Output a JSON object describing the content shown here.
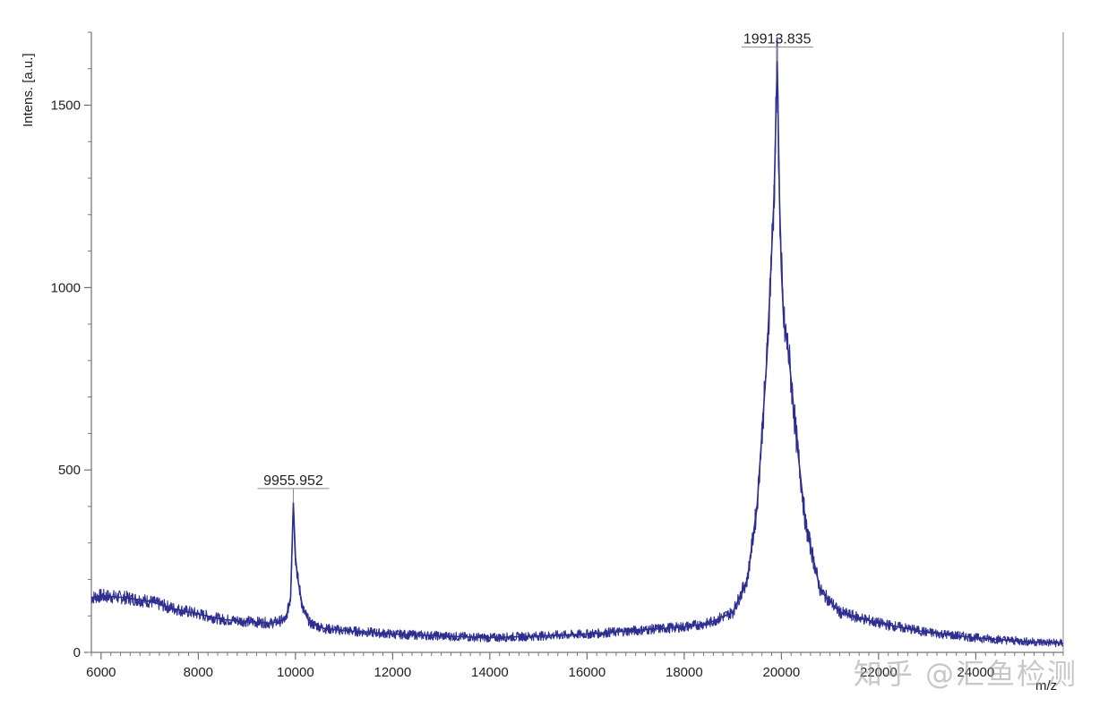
{
  "chart_data": {
    "type": "line",
    "xlabel": "m/z",
    "ylabel": "Intens. [a.u.]",
    "xlim": [
      5800,
      25800
    ],
    "ylim": [
      0,
      1700
    ],
    "x_ticks": [
      6000,
      8000,
      10000,
      12000,
      14000,
      16000,
      18000,
      20000,
      22000,
      24000
    ],
    "x_tick_labels": [
      "6000",
      "8000",
      "10000",
      "12000",
      "14000",
      "16000",
      "18000",
      "20000",
      "22000",
      "24000"
    ],
    "y_ticks": [
      0,
      500,
      1000,
      1500
    ],
    "y_tick_labels": [
      "0",
      "500",
      "1000",
      "1500"
    ],
    "grid": false,
    "series": [
      {
        "color": "#2e2e91",
        "points": [
          [
            5800,
            150
          ],
          [
            6000,
            155
          ],
          [
            6500,
            150
          ],
          [
            7000,
            140
          ],
          [
            7500,
            120
          ],
          [
            8000,
            105
          ],
          [
            8500,
            90
          ],
          [
            9000,
            85
          ],
          [
            9500,
            80
          ],
          [
            9800,
            90
          ],
          [
            9900,
            150
          ],
          [
            9955.952,
            410
          ],
          [
            10000,
            260
          ],
          [
            10050,
            200
          ],
          [
            10150,
            120
          ],
          [
            10300,
            80
          ],
          [
            10600,
            65
          ],
          [
            11000,
            60
          ],
          [
            12000,
            50
          ],
          [
            13000,
            45
          ],
          [
            14000,
            40
          ],
          [
            15000,
            45
          ],
          [
            16000,
            50
          ],
          [
            17000,
            60
          ],
          [
            18000,
            70
          ],
          [
            18500,
            80
          ],
          [
            19000,
            110
          ],
          [
            19300,
            200
          ],
          [
            19500,
            400
          ],
          [
            19700,
            800
          ],
          [
            19850,
            1250
          ],
          [
            19913.835,
            1620
          ],
          [
            19960,
            1250
          ],
          [
            20000,
            1050
          ],
          [
            20050,
            900
          ],
          [
            20150,
            820
          ],
          [
            20300,
            600
          ],
          [
            20500,
            350
          ],
          [
            20800,
            170
          ],
          [
            21200,
            110
          ],
          [
            22000,
            80
          ],
          [
            23000,
            55
          ],
          [
            24000,
            40
          ],
          [
            25000,
            30
          ],
          [
            25800,
            25
          ]
        ]
      }
    ],
    "annotations": [
      {
        "x": 9955.952,
        "y": 410,
        "text": "9955.952"
      },
      {
        "x": 19913.835,
        "y": 1620,
        "text": "19913.835"
      }
    ]
  },
  "watermark": "知乎 @汇鱼检测"
}
